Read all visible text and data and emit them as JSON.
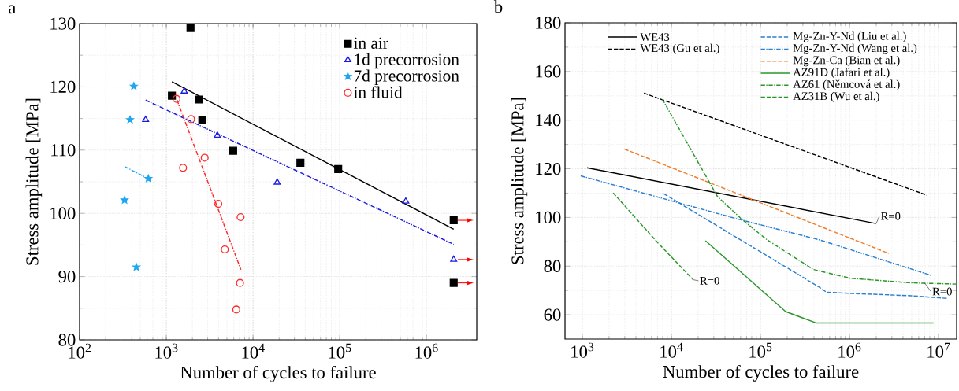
{
  "chart_data": [
    {
      "type": "scatter",
      "title": "a",
      "xlabel": "Number of cycles to failure",
      "ylabel": "Stress amplitude [MPa]",
      "log": "x",
      "xlim": [
        100,
        3800000
      ],
      "ylim": [
        80,
        130
      ],
      "xticks": [
        {
          "value": 100,
          "label": "10$^{2}$"
        },
        {
          "value": 1000,
          "label": "10$^{3}$"
        },
        {
          "value": 10000,
          "label": "10$^{4}$"
        },
        {
          "value": 100000,
          "label": "10$^{5}$"
        },
        {
          "value": 1000000,
          "label": "10$^{6}$"
        }
      ],
      "yticks": [
        80,
        90,
        100,
        110,
        120,
        130
      ],
      "grid": true,
      "legend": "top right",
      "series": [
        {
          "name": "in air",
          "color": "#000000",
          "marker": "square",
          "x": [
            1160,
            1900,
            2390,
            2600,
            5900,
            35200,
            96000,
            2060000,
            2060000
          ],
          "values": [
            118.6,
            129.3,
            118.0,
            114.8,
            109.9,
            108.0,
            107.0,
            98.9,
            89.0
          ]
        },
        {
          "name": "1d precorrosion",
          "color": "#1a1ae0",
          "marker": "triangle",
          "x": [
            1610,
            577,
            3880,
            19000,
            577000,
            2060000
          ],
          "values": [
            119.3,
            114.8,
            112.3,
            104.9,
            101.9,
            92.7
          ]
        },
        {
          "name": "7d precorrosion",
          "color": "#1ea7f0",
          "marker": "star",
          "x": [
            422,
            382,
            621,
            330,
            451
          ],
          "values": [
            120.1,
            114.8,
            105.5,
            102.1,
            91.5
          ]
        },
        {
          "name": "in fluid",
          "color": "#ff2a2a",
          "marker": "circle",
          "x": [
            1310,
            1930,
            1560,
            2770,
            3980,
            7190,
            4730,
            7080,
            6410
          ],
          "values": [
            118.1,
            114.9,
            107.2,
            108.8,
            101.5,
            99.4,
            94.3,
            89.0,
            84.8
          ]
        },
        {
          "type": "line",
          "color": "#000000",
          "line_style": "solid",
          "x": [
            1160,
            2060000
          ],
          "values": [
            120.8,
            97.5
          ]
        },
        {
          "type": "line",
          "color": "#1a1ae0",
          "line_style": "dashdot",
          "x": [
            577,
            2060000
          ],
          "values": [
            117.9,
            95.1
          ]
        },
        {
          "type": "line",
          "color": "#1ea7f0",
          "line_style": "dashdot",
          "x": [
            330,
            560
          ],
          "values": [
            107.4,
            105.8
          ]
        },
        {
          "type": "line",
          "color": "#ff2a2a",
          "line_style": "dashdot",
          "x": [
            1330,
            7250
          ],
          "values": [
            117.9,
            91.1
          ]
        }
      ]
    },
    {
      "type": "line",
      "title": "b",
      "xlabel": "Number of cycles to failure",
      "ylabel": "Stress amplitude [MPa]",
      "log": "x",
      "xlim": [
        640,
        16000000
      ],
      "ylim": [
        50,
        180
      ],
      "xticks": [
        {
          "value": 1000,
          "label": "10$^{3}$"
        },
        {
          "value": 10000,
          "label": "10$^{4}$"
        },
        {
          "value": 100000,
          "label": "10$^{5}$"
        },
        {
          "value": 1000000,
          "label": "10$^{6}$"
        },
        {
          "value": 10000000,
          "label": "10$^{7}$"
        }
      ],
      "yticks": [
        60,
        80,
        100,
        120,
        140,
        160,
        180
      ],
      "grid": true,
      "legend": "top",
      "annotations": [
        {
          "text": "R=0",
          "x": 2000000,
          "y": 97.5
        },
        {
          "text": "R=0",
          "x": 17600,
          "y": 74.4
        },
        {
          "text": "R=0",
          "x": 7000000,
          "y": 73
        }
      ],
      "series": [
        {
          "name": "WE43",
          "color": "#000000",
          "line_style": "solid",
          "x": [
            1130,
            1990000
          ],
          "values": [
            120.4,
            97.5
          ]
        },
        {
          "name": "WE43 (Gu et al.)",
          "color": "#000000",
          "line_style": "dashed",
          "x": [
            4920,
            7500000
          ],
          "values": [
            151.1,
            109.1
          ]
        },
        {
          "name": "Mg-Zn-Y-Nd (Liu et al.)",
          "color": "#2a7fd0",
          "line_style": "dashed",
          "x": [
            8260,
            461000,
            550000,
            1000000,
            5000000,
            12600000
          ],
          "values": [
            109.7,
            71.3,
            69.3,
            68.8,
            67.8,
            66.7
          ]
        },
        {
          "name": "Mg-Zn-Y-Nd (Wang et al.)",
          "color": "#2a7fd0",
          "line_style": "dashdot",
          "x": [
            960,
            53700,
            461000,
            8450000
          ],
          "values": [
            117.1,
            99.5,
            90.8,
            76.1
          ]
        },
        {
          "name": "Mg-Zn-Ca (Bian et al.)",
          "color": "#f08030",
          "line_style": "dashed",
          "x": [
            2980,
            2770000
          ],
          "values": [
            128.1,
            85.2
          ]
        },
        {
          "name": "AZ91D (Jafari et al.)",
          "color": "#2a962a",
          "line_style": "solid",
          "x": [
            24200,
            192000,
            427000,
            8800000
          ],
          "values": [
            90.4,
            61.3,
            56.6,
            56.6
          ]
        },
        {
          "name": "AZ61 (Němcová et al.)",
          "color": "#2a962a",
          "line_style": "dashdot",
          "x": [
            7940,
            33100,
            63000,
            119000,
            394000,
            1020000,
            5000000,
            16000000
          ],
          "values": [
            148.6,
            108.5,
            99.0,
            90.8,
            78.6,
            75.0,
            73.1,
            72.6
          ]
        },
        {
          "name": "AZ31B (Wu et al.)",
          "color": "#2a962a",
          "line_style": "dashed",
          "x": [
            2220,
            7050,
            17600
          ],
          "values": [
            110.1,
            89.6,
            74.4
          ]
        }
      ]
    }
  ]
}
